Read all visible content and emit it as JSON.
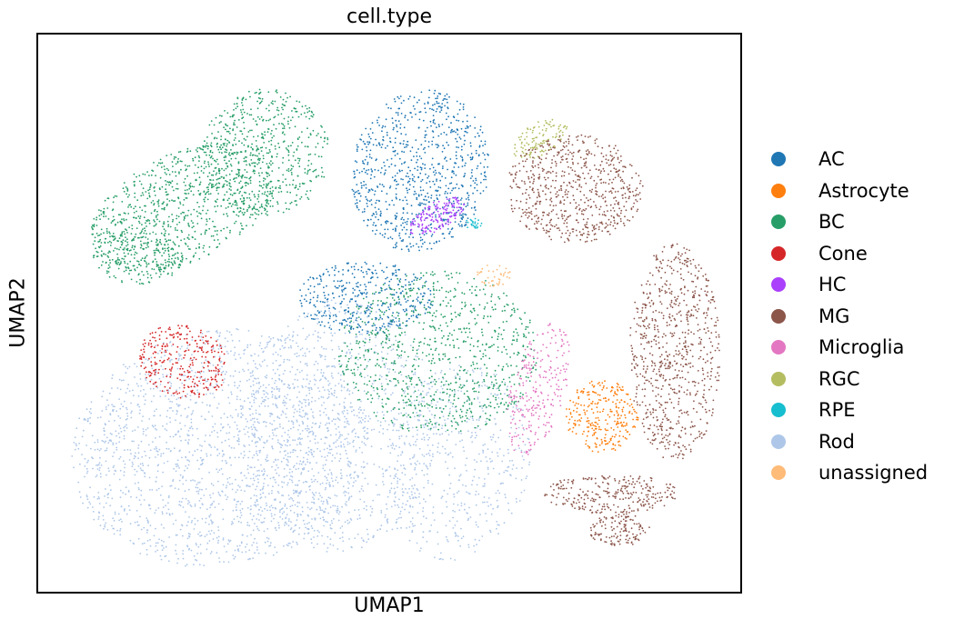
{
  "chart_data": {
    "type": "scatter",
    "title": "cell.type",
    "xlabel": "UMAP1",
    "ylabel": "UMAP2",
    "grid": false,
    "axis_ticks": false,
    "legend_placement": "right",
    "categories": [
      {
        "name": "AC",
        "color": "#1f77b4"
      },
      {
        "name": "Astrocyte",
        "color": "#ff7f0e"
      },
      {
        "name": "BC",
        "color": "#279e68"
      },
      {
        "name": "Cone",
        "color": "#d62728"
      },
      {
        "name": "HC",
        "color": "#aa40fc"
      },
      {
        "name": "MG",
        "color": "#8c564b"
      },
      {
        "name": "Microglia",
        "color": "#e377c2"
      },
      {
        "name": "RGC",
        "color": "#b5bd61"
      },
      {
        "name": "RPE",
        "color": "#17becf"
      },
      {
        "name": "Rod",
        "color": "#aec7e8"
      },
      {
        "name": "unassigned",
        "color": "#ffbb78"
      }
    ]
  }
}
